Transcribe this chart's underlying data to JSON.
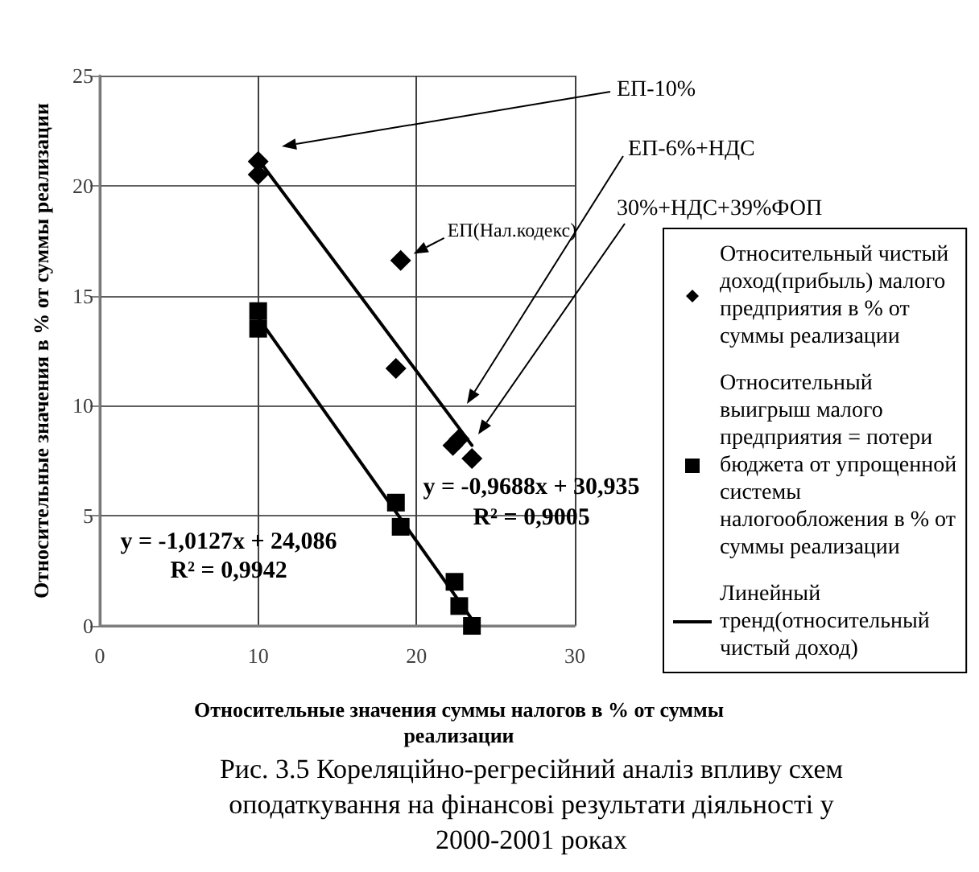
{
  "chart_data": {
    "type": "scatter",
    "title": "Рис. 3.5 Кореляційно-регресійний аналіз впливу схем оподаткування на фінансові результати діяльності у 2000-2001 роках",
    "xlabel": "Относительные значения суммы налогов в % от суммы реализации",
    "ylabel": "Относительные значения в % от суммы реализации",
    "xlim": [
      0,
      30
    ],
    "xticks": [
      0,
      10,
      20,
      30
    ],
    "ylim": [
      0,
      25
    ],
    "yticks": [
      0,
      5,
      10,
      15,
      20,
      25
    ],
    "grid": true,
    "legend": "right",
    "series": [
      {
        "name": "Относительный чистый доход(прибыль) малого предприятия в % от суммы реализации",
        "marker": "diamond",
        "color": "#000000",
        "x": [
          10,
          10,
          19,
          18.7,
          22.3,
          22.7,
          23.5
        ],
        "values": [
          21.1,
          20.5,
          16.6,
          11.7,
          8.2,
          8.5,
          7.6
        ]
      },
      {
        "name": "Относительный выигрыш малого предприятия = потери бюджета от упрощенной системы налогообложения в % от суммы реализации",
        "marker": "square",
        "color": "#000000",
        "x": [
          10,
          10,
          18.7,
          19,
          22.4,
          22.7,
          23.5
        ],
        "values": [
          14.3,
          13.5,
          5.6,
          4.5,
          2.0,
          0.9,
          0
        ]
      },
      {
        "name": "Линейный тренд(относительный чистый доход)",
        "type": "line",
        "marker": "none",
        "color": "#000000",
        "x": [
          10,
          23.5
        ],
        "values": [
          21.2,
          8.2
        ]
      },
      {
        "type": "line",
        "marker": "none",
        "color": "#000000",
        "x": [
          10,
          23.5
        ],
        "values": [
          14.0,
          0.3
        ]
      }
    ],
    "annotations": [
      "ЕП-10%",
      "ЕП-6%+НДС",
      "30%+НДС+39%ФОП",
      {
        "text": "ЕП(Нал.кодекс)",
        "x": 19,
        "y": 16.6
      },
      "y = -0,9688x + 30,935",
      "R² = 0,9005",
      "y = -1,0127x + 24,086",
      "R² = 0,9942"
    ]
  }
}
